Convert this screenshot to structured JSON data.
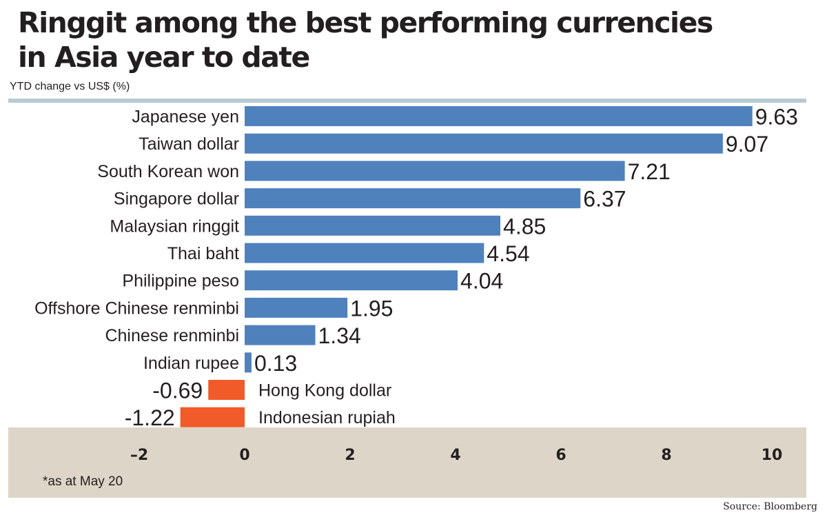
{
  "title_lines": [
    "Ringgit among the best performing currencies",
    "in Asia year to date"
  ],
  "subtitle": "YTD change vs US$ (%)",
  "footnote": "*as at May 20",
  "source": "Source: Bloomberg",
  "colors": {
    "positive": "#4f81bd",
    "negative": "#f15a29",
    "rule": "#b7cad3",
    "axis_band": "#ddd5c7",
    "text": "#231f20"
  },
  "chart_data": {
    "type": "bar",
    "orientation": "horizontal",
    "title": "Ringgit among the best performing currencies in Asia year to date",
    "xlabel": "YTD change vs US$ (%)",
    "ylabel": "",
    "xlim": [
      -2,
      10
    ],
    "x_ticks": [
      -2,
      0,
      2,
      4,
      6,
      8,
      10
    ],
    "x_tick_labels": [
      "–2",
      "0",
      "2",
      "4",
      "6",
      "8",
      "10"
    ],
    "grid": false,
    "categories": [
      "Japanese yen",
      "Taiwan dollar",
      "South Korean won",
      "Singapore dollar",
      "Malaysian ringgit",
      "Thai baht",
      "Philippine peso",
      "Offshore Chinese renminbi",
      "Chinese renminbi",
      "Indian rupee",
      "Hong Kong dollar",
      "Indonesian rupiah"
    ],
    "values": [
      9.63,
      9.07,
      7.21,
      6.37,
      4.85,
      4.54,
      4.04,
      1.95,
      1.34,
      0.13,
      -0.69,
      -1.22
    ],
    "value_labels": [
      "9.63",
      "9.07",
      "7.21",
      "6.37",
      "4.85",
      "4.54",
      "4.04",
      "1.95",
      "1.34",
      "0.13",
      "-0.69",
      "-1.22"
    ]
  }
}
